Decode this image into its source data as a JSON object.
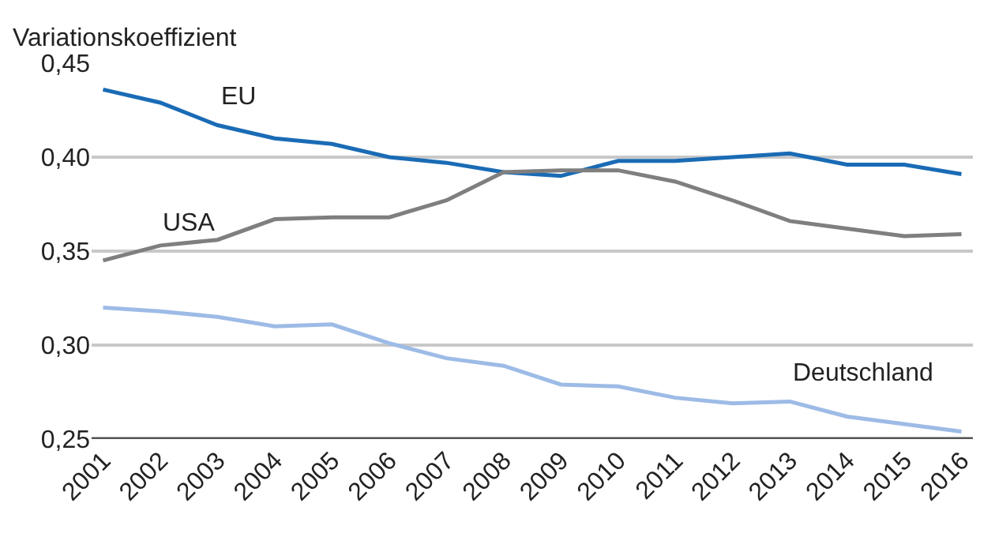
{
  "chart_data": {
    "type": "line",
    "ylabel": "Variationskoeffizient",
    "categories": [
      "2001",
      "2002",
      "2003",
      "2004",
      "2005",
      "2006",
      "2007",
      "2008",
      "2009",
      "2010",
      "2011",
      "2012",
      "2013",
      "2014",
      "2015",
      "2016"
    ],
    "series": [
      {
        "name": "EU",
        "color": "#1a6bb5",
        "values": [
          0.436,
          0.429,
          0.417,
          0.41,
          0.407,
          0.4,
          0.397,
          0.392,
          0.39,
          0.398,
          0.398,
          0.4,
          0.402,
          0.396,
          0.396,
          0.391
        ]
      },
      {
        "name": "USA",
        "color": "#7f7f7f",
        "values": [
          0.345,
          0.353,
          0.356,
          0.367,
          0.368,
          0.368,
          0.377,
          0.392,
          0.393,
          0.393,
          0.387,
          0.377,
          0.366,
          0.362,
          0.358,
          0.359
        ]
      },
      {
        "name": "Deutschland",
        "color": "#9dbbe6",
        "values": [
          0.32,
          0.318,
          0.315,
          0.31,
          0.311,
          0.301,
          0.293,
          0.289,
          0.279,
          0.278,
          0.272,
          0.269,
          0.27,
          0.262,
          0.258,
          0.254
        ]
      }
    ],
    "ylim": [
      0.25,
      0.45
    ],
    "yticks": [
      {
        "value": 0.25,
        "label": "0,25"
      },
      {
        "value": 0.3,
        "label": "0,30"
      },
      {
        "value": 0.35,
        "label": "0,35"
      },
      {
        "value": 0.4,
        "label": "0,40"
      },
      {
        "value": 0.45,
        "label": "0,45"
      }
    ],
    "grid": "y",
    "legend": false,
    "marker": "none",
    "line_style": "solid"
  }
}
